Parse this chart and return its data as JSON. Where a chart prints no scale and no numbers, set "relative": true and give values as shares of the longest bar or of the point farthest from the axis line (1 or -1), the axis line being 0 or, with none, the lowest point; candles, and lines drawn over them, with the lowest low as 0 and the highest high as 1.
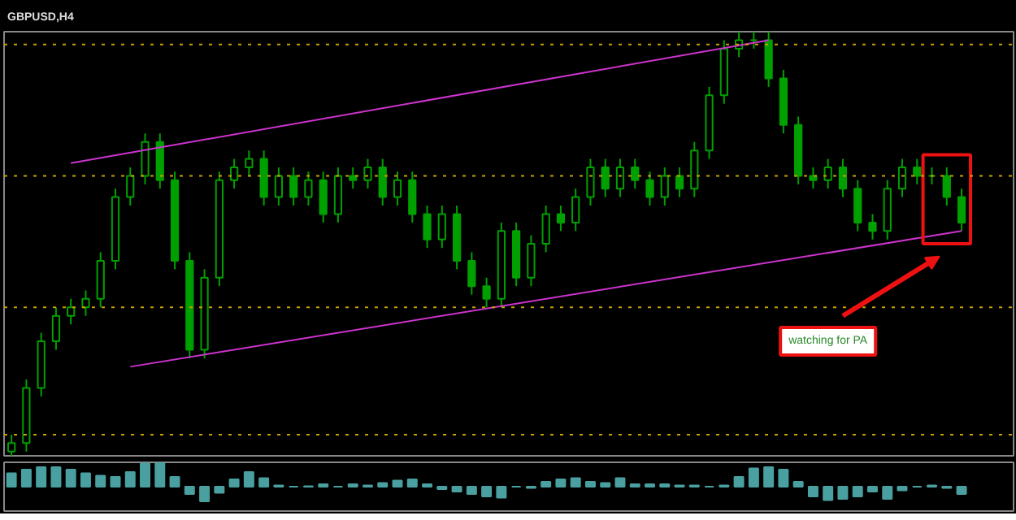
{
  "chart_data": [
    {
      "type": "candlestick",
      "title": "GBPUSD,H4",
      "relative": true,
      "color": "#00a000",
      "categories": [
        null,
        null,
        null,
        null,
        null,
        null,
        null,
        null,
        null,
        null,
        null,
        null,
        null,
        null,
        null,
        null,
        null,
        null,
        null,
        null,
        null,
        null,
        null,
        null,
        null,
        null,
        null,
        null,
        null,
        null,
        null,
        null,
        null,
        null,
        null,
        null,
        null,
        null,
        null,
        null,
        null,
        null,
        null,
        null,
        null,
        null,
        null,
        null,
        null,
        null,
        null,
        null,
        null,
        null,
        null,
        null,
        null,
        null,
        null,
        null,
        null,
        null,
        null,
        null,
        null
      ],
      "ohlc": [
        [
          0.01,
          0.05,
          0.0,
          0.03
        ],
        [
          0.03,
          0.18,
          0.01,
          0.16
        ],
        [
          0.16,
          0.29,
          0.14,
          0.27
        ],
        [
          0.27,
          0.35,
          0.25,
          0.33
        ],
        [
          0.33,
          0.37,
          0.31,
          0.35
        ],
        [
          0.35,
          0.39,
          0.33,
          0.37
        ],
        [
          0.37,
          0.48,
          0.35,
          0.46
        ],
        [
          0.46,
          0.63,
          0.44,
          0.61
        ],
        [
          0.61,
          0.68,
          0.59,
          0.66
        ],
        [
          0.66,
          0.76,
          0.64,
          0.74
        ],
        [
          0.74,
          0.76,
          0.63,
          0.65
        ],
        [
          0.65,
          0.67,
          0.44,
          0.46
        ],
        [
          0.46,
          0.48,
          0.23,
          0.25
        ],
        [
          0.25,
          0.44,
          0.23,
          0.42
        ],
        [
          0.42,
          0.67,
          0.4,
          0.65
        ],
        [
          0.65,
          0.7,
          0.63,
          0.68
        ],
        [
          0.68,
          0.72,
          0.66,
          0.7
        ],
        [
          0.7,
          0.72,
          0.59,
          0.61
        ],
        [
          0.61,
          0.68,
          0.59,
          0.66
        ],
        [
          0.66,
          0.68,
          0.59,
          0.61
        ],
        [
          0.61,
          0.67,
          0.59,
          0.65
        ],
        [
          0.65,
          0.67,
          0.55,
          0.57
        ],
        [
          0.57,
          0.68,
          0.55,
          0.66
        ],
        [
          0.66,
          0.68,
          0.63,
          0.65
        ],
        [
          0.65,
          0.7,
          0.63,
          0.68
        ],
        [
          0.68,
          0.7,
          0.59,
          0.61
        ],
        [
          0.61,
          0.67,
          0.59,
          0.65
        ],
        [
          0.65,
          0.67,
          0.55,
          0.57
        ],
        [
          0.57,
          0.59,
          0.49,
          0.51
        ],
        [
          0.51,
          0.59,
          0.49,
          0.57
        ],
        [
          0.57,
          0.59,
          0.44,
          0.46
        ],
        [
          0.46,
          0.48,
          0.38,
          0.4
        ],
        [
          0.4,
          0.42,
          0.35,
          0.37
        ],
        [
          0.37,
          0.55,
          0.35,
          0.53
        ],
        [
          0.53,
          0.55,
          0.4,
          0.42
        ],
        [
          0.42,
          0.52,
          0.4,
          0.5
        ],
        [
          0.5,
          0.59,
          0.48,
          0.57
        ],
        [
          0.57,
          0.59,
          0.53,
          0.55
        ],
        [
          0.55,
          0.63,
          0.53,
          0.61
        ],
        [
          0.61,
          0.7,
          0.59,
          0.68
        ],
        [
          0.68,
          0.7,
          0.61,
          0.63
        ],
        [
          0.63,
          0.7,
          0.61,
          0.68
        ],
        [
          0.68,
          0.7,
          0.63,
          0.65
        ],
        [
          0.65,
          0.67,
          0.59,
          0.61
        ],
        [
          0.61,
          0.68,
          0.59,
          0.66
        ],
        [
          0.66,
          0.68,
          0.61,
          0.63
        ],
        [
          0.63,
          0.74,
          0.61,
          0.72
        ],
        [
          0.72,
          0.87,
          0.7,
          0.85
        ],
        [
          0.85,
          0.98,
          0.83,
          0.96
        ],
        [
          0.96,
          1.0,
          0.94,
          0.98
        ],
        [
          0.98,
          1.0,
          0.96,
          0.98
        ],
        [
          0.98,
          1.0,
          0.87,
          0.89
        ],
        [
          0.89,
          0.91,
          0.76,
          0.78
        ],
        [
          0.78,
          0.8,
          0.64,
          0.66
        ],
        [
          0.66,
          0.68,
          0.63,
          0.65
        ],
        [
          0.65,
          0.7,
          0.63,
          0.68
        ],
        [
          0.68,
          0.7,
          0.61,
          0.63
        ],
        [
          0.63,
          0.65,
          0.53,
          0.55
        ],
        [
          0.55,
          0.57,
          0.51,
          0.53
        ],
        [
          0.53,
          0.65,
          0.51,
          0.63
        ],
        [
          0.63,
          0.7,
          0.61,
          0.68
        ],
        [
          0.68,
          0.7,
          0.64,
          0.66
        ],
        [
          0.66,
          0.68,
          0.64,
          0.66
        ],
        [
          0.66,
          0.68,
          0.59,
          0.61
        ],
        [
          0.61,
          0.63,
          0.53,
          0.55
        ]
      ],
      "series": [
        {
          "type": "line",
          "values": [
            null,
            null,
            null,
            null,
            0.69,
            null,
            null,
            null,
            null,
            null,
            null,
            null,
            null,
            null,
            null,
            null,
            null,
            null,
            null,
            null,
            null,
            null,
            null,
            null,
            null,
            null,
            null,
            null,
            null,
            null,
            null,
            null,
            null,
            null,
            null,
            null,
            null,
            null,
            null,
            null,
            null,
            null,
            null,
            null,
            null,
            null,
            null,
            null,
            null,
            null,
            null,
            0.98,
            null,
            null,
            null,
            null,
            null,
            null,
            null,
            null,
            null,
            null,
            null,
            null,
            null
          ],
          "color": "#cc33cc"
        },
        {
          "type": "line",
          "values": [
            null,
            null,
            null,
            null,
            null,
            null,
            null,
            null,
            0.21,
            null,
            null,
            null,
            null,
            null,
            null,
            null,
            null,
            null,
            null,
            null,
            null,
            null,
            null,
            null,
            null,
            null,
            null,
            null,
            null,
            null,
            null,
            null,
            null,
            null,
            null,
            null,
            null,
            null,
            null,
            null,
            null,
            null,
            null,
            null,
            null,
            null,
            null,
            null,
            null,
            null,
            null,
            null,
            null,
            null,
            null,
            null,
            null,
            null,
            null,
            null,
            null,
            null,
            null,
            null,
            0.53
          ],
          "color": "#cc33cc"
        }
      ],
      "ref_lines": [
        {
          "axis": "y",
          "value": 0.97,
          "color": "#c8a000",
          "line_style": "dotted"
        },
        {
          "axis": "y",
          "value": 0.66,
          "color": "#c8a000",
          "line_style": "dotted"
        },
        {
          "axis": "y",
          "value": 0.35,
          "color": "#c8a000",
          "line_style": "dotted"
        },
        {
          "axis": "y",
          "value": 0.05,
          "color": "#c8a000",
          "line_style": "dotted"
        }
      ],
      "annotations": [
        "watching for PA"
      ],
      "grid": false,
      "tick_labels": false
    },
    {
      "type": "bar",
      "relative": true,
      "color": "#4aa0a0",
      "grid": false,
      "tick_labels": false,
      "categories": [
        null,
        null,
        null,
        null,
        null,
        null,
        null,
        null,
        null,
        null,
        null,
        null,
        null,
        null,
        null,
        null,
        null,
        null,
        null,
        null,
        null,
        null,
        null,
        null,
        null,
        null,
        null,
        null,
        null,
        null,
        null,
        null,
        null,
        null,
        null,
        null,
        null,
        null,
        null,
        null,
        null,
        null,
        null,
        null,
        null,
        null,
        null,
        null,
        null,
        null,
        null,
        null,
        null,
        null,
        null,
        null,
        null,
        null,
        null,
        null,
        null,
        null,
        null,
        null,
        null
      ],
      "values": [
        0.55,
        0.7,
        0.8,
        0.8,
        0.7,
        0.55,
        0.45,
        0.4,
        0.6,
        0.95,
        1.0,
        0.4,
        -0.3,
        -0.6,
        -0.25,
        0.3,
        0.6,
        0.35,
        0.05,
        0.0,
        0.02,
        0.1,
        0.0,
        0.1,
        0.05,
        0.15,
        0.25,
        0.3,
        0.1,
        -0.1,
        -0.2,
        -0.3,
        -0.4,
        -0.45,
        0.0,
        -0.05,
        0.2,
        0.3,
        0.35,
        0.2,
        0.15,
        0.35,
        0.1,
        0.1,
        0.1,
        0.05,
        0.05,
        0.0,
        0.05,
        0.4,
        0.75,
        0.8,
        0.7,
        0.2,
        -0.4,
        -0.55,
        -0.5,
        -0.4,
        -0.2,
        -0.5,
        -0.15,
        0.0,
        0.05,
        -0.05,
        -0.3
      ]
    }
  ]
}
